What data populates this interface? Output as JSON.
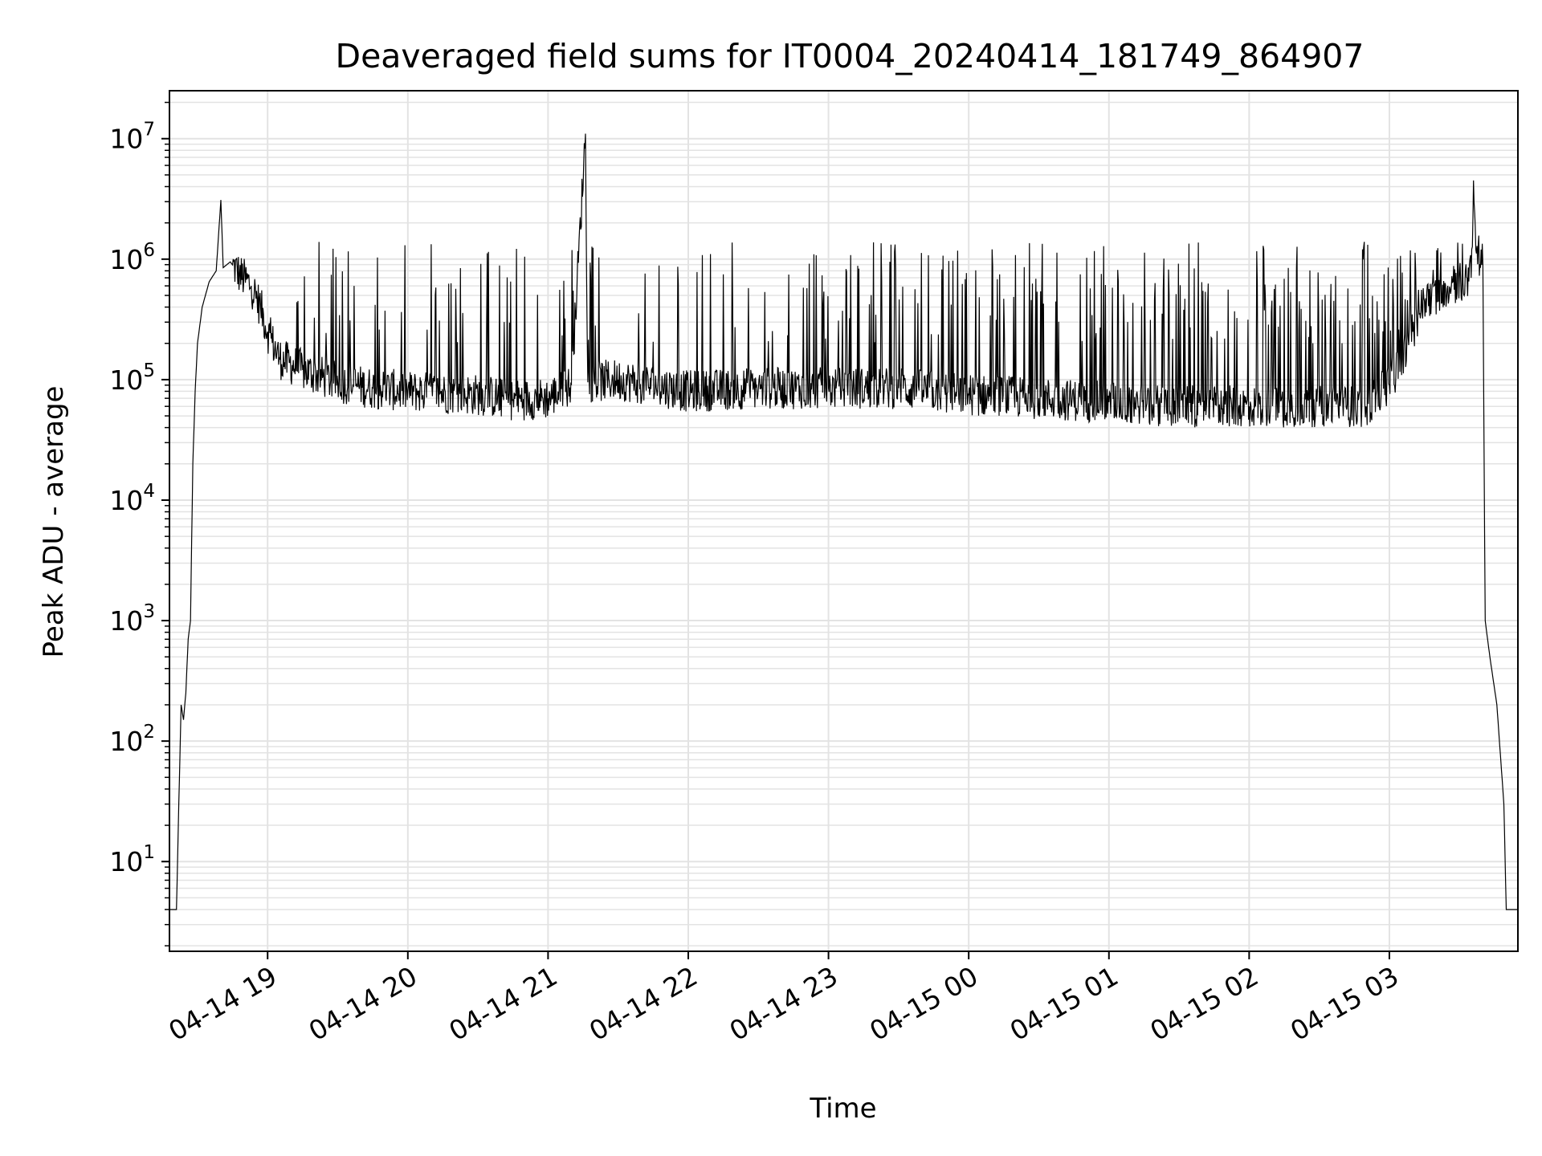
{
  "chart_data": {
    "type": "line",
    "title": "Deaveraged field sums for IT0004_20240414_181749_864907",
    "xlabel": "Time",
    "ylabel": "Peak ADU - average",
    "yscale": "log",
    "ylim": [
      1.8,
      25000000
    ],
    "xlim": [
      "2024-04-14 18:18",
      "2024-04-15 03:55"
    ],
    "grid": true,
    "line_color": "#000000",
    "grid_color": "#e3e3e3",
    "x_ticks": [
      {
        "t": "2024-04-14 19:00",
        "label": "04-14 19"
      },
      {
        "t": "2024-04-14 20:00",
        "label": "04-14 20"
      },
      {
        "t": "2024-04-14 21:00",
        "label": "04-14 21"
      },
      {
        "t": "2024-04-14 22:00",
        "label": "04-14 22"
      },
      {
        "t": "2024-04-14 23:00",
        "label": "04-14 23"
      },
      {
        "t": "2024-04-15 00:00",
        "label": "04-15 00"
      },
      {
        "t": "2024-04-15 01:00",
        "label": "04-15 01"
      },
      {
        "t": "2024-04-15 02:00",
        "label": "04-15 02"
      },
      {
        "t": "2024-04-15 03:00",
        "label": "04-15 03"
      }
    ],
    "y_ticks": [
      {
        "value": 10,
        "base": "10",
        "exp": "1"
      },
      {
        "value": 100,
        "base": "10",
        "exp": "2"
      },
      {
        "value": 1000,
        "base": "10",
        "exp": "3"
      },
      {
        "value": 10000,
        "base": "10",
        "exp": "4"
      },
      {
        "value": 100000,
        "base": "10",
        "exp": "5"
      },
      {
        "value": 1000000,
        "base": "10",
        "exp": "6"
      },
      {
        "value": 10000000,
        "base": "10",
        "exp": "7"
      }
    ],
    "series": [
      {
        "points": [
          [
            "2024-04-14 18:18",
            4
          ],
          [
            "2024-04-14 18:21",
            4
          ],
          [
            "2024-04-14 18:22",
            30
          ],
          [
            "2024-04-14 18:23",
            200
          ],
          [
            "2024-04-14 18:24",
            150
          ],
          [
            "2024-04-14 18:25",
            250
          ],
          [
            "2024-04-14 18:26",
            700
          ],
          [
            "2024-04-14 18:27",
            1000
          ],
          [
            "2024-04-14 18:28",
            20000
          ],
          [
            "2024-04-14 18:29",
            80000
          ],
          [
            "2024-04-14 18:30",
            200000
          ],
          [
            "2024-04-14 18:32",
            400000
          ],
          [
            "2024-04-14 18:35",
            650000
          ],
          [
            "2024-04-14 18:38",
            800000
          ],
          [
            "2024-04-14 18:40",
            3100000
          ],
          [
            "2024-04-14 18:41",
            850000
          ],
          [
            "2024-04-14 18:44",
            950000
          ],
          [
            "2024-04-14 18:48",
            750000
          ],
          [
            "2024-04-14 18:53",
            600000
          ],
          [
            "2024-04-14 18:57",
            400000
          ],
          [
            "2024-04-14 19:00",
            250000
          ],
          [
            "2024-04-14 19:05",
            150000
          ],
          [
            "2024-04-14 19:15",
            120000
          ],
          [
            "2024-04-14 19:30",
            95000
          ],
          [
            "2024-04-14 19:45",
            85000
          ],
          [
            "2024-04-14 20:00",
            80000
          ],
          [
            "2024-04-14 20:30",
            75000
          ],
          [
            "2024-04-14 20:45",
            68000
          ],
          [
            "2024-04-14 21:00",
            70000
          ],
          [
            "2024-04-14 21:10",
            90000
          ],
          [
            "2024-04-14 21:16",
            11000000
          ],
          [
            "2024-04-14 21:17",
            95000
          ],
          [
            "2024-04-14 21:30",
            100000
          ],
          [
            "2024-04-14 22:00",
            80000
          ],
          [
            "2024-04-14 22:30",
            85000
          ],
          [
            "2024-04-14 23:00",
            85000
          ],
          [
            "2024-04-14 23:30",
            85000
          ],
          [
            "2024-04-15 00:00",
            75000
          ],
          [
            "2024-04-15 00:30",
            70000
          ],
          [
            "2024-04-15 01:00",
            65000
          ],
          [
            "2024-04-15 01:30",
            60000
          ],
          [
            "2024-04-15 02:00",
            60000
          ],
          [
            "2024-04-15 02:30",
            60000
          ],
          [
            "2024-04-15 02:50",
            60000
          ],
          [
            "2024-04-15 03:00",
            90000
          ],
          [
            "2024-04-15 03:05",
            150000
          ],
          [
            "2024-04-15 03:10",
            250000
          ],
          [
            "2024-04-15 03:15",
            450000
          ],
          [
            "2024-04-15 03:25",
            600000
          ],
          [
            "2024-04-15 03:35",
            700000
          ],
          [
            "2024-04-15 03:36",
            4500000
          ],
          [
            "2024-04-15 03:37",
            1200000
          ],
          [
            "2024-04-15 03:40",
            900000
          ],
          [
            "2024-04-15 03:41",
            1000
          ],
          [
            "2024-04-15 03:43",
            500
          ],
          [
            "2024-04-15 03:46",
            200
          ],
          [
            "2024-04-15 03:49",
            30
          ],
          [
            "2024-04-15 03:50",
            4
          ],
          [
            "2024-04-15 03:55",
            4
          ]
        ]
      }
    ]
  }
}
